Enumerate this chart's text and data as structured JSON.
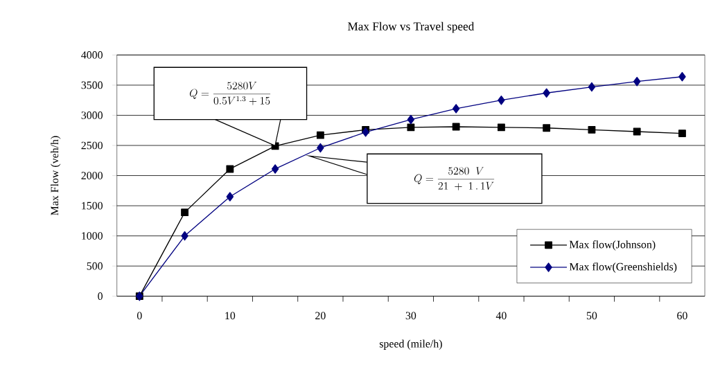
{
  "chart_data": {
    "type": "line",
    "title": "Max Flow vs Travel speed",
    "xlabel": "speed (mile/h)",
    "ylabel": "Max Flow  (veh/h)",
    "x": [
      0,
      5,
      10,
      15,
      20,
      25,
      30,
      35,
      40,
      45,
      50,
      55,
      60
    ],
    "series": [
      {
        "name": "Max flow(Johnson)",
        "color": "#000000",
        "marker": "square",
        "values": [
          0,
          1390,
          2110,
          2490,
          2670,
          2760,
          2800,
          2810,
          2800,
          2790,
          2760,
          2730,
          2700
        ]
      },
      {
        "name": "Max flow(Greenshields)",
        "color": "#000080",
        "marker": "diamond",
        "values": [
          0,
          1000,
          1650,
          2110,
          2460,
          2720,
          2930,
          3110,
          3250,
          3370,
          3470,
          3560,
          3640
        ]
      }
    ],
    "annotations": [
      "Q=\\frac{5280V}{0.5V^{1.3}+15}",
      "Q=\\frac{5280\\;\\;V}{21\\;+\\;1\\,.\\,1V}"
    ],
    "xlim": [
      -2.5,
      62.5
    ],
    "xticks": [
      0,
      10,
      20,
      30,
      40,
      50,
      60,
      {
        "value": 2.5,
        "label": null
      },
      {
        "value": 7.5,
        "label": null
      },
      {
        "value": 12.5,
        "label": null
      },
      {
        "value": 17.5,
        "label": null
      },
      {
        "value": 22.5,
        "label": null
      },
      {
        "value": 27.5,
        "label": null
      },
      {
        "value": 32.5,
        "label": null
      },
      {
        "value": 37.5,
        "label": null
      },
      {
        "value": 42.5,
        "label": null
      },
      {
        "value": 47.5,
        "label": null
      },
      {
        "value": 52.5,
        "label": null
      },
      {
        "value": 57.5,
        "label": null
      }
    ],
    "ylim": [
      0,
      4000
    ],
    "yticks": [
      0,
      500,
      1000,
      1500,
      2000,
      2500,
      3000,
      3500,
      4000
    ],
    "grid": "y",
    "legend": "bottom right",
    "line_style": "solid"
  }
}
